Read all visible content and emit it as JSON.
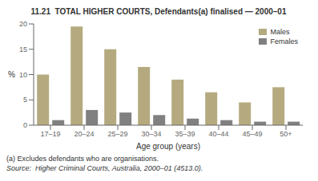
{
  "chart_data": {
    "type": "bar",
    "title": "11.21  TOTAL HIGHER COURTS, Defendants(a) finalised — 2000–01",
    "categories": [
      "17–19",
      "20–24",
      "25–29",
      "30–34",
      "35–39",
      "40–44",
      "45–49",
      "50+"
    ],
    "series": [
      {
        "name": "Males",
        "color": "#b5aa7f",
        "values": [
          10.0,
          19.5,
          15.0,
          11.5,
          9.0,
          6.5,
          4.5,
          7.5
        ]
      },
      {
        "name": "Females",
        "color": "#808080",
        "values": [
          1.0,
          3.0,
          2.5,
          2.0,
          1.3,
          1.0,
          0.7,
          0.7
        ]
      }
    ],
    "xlabel": "Age group (years)",
    "ylabel": "%",
    "ylim": [
      0,
      20
    ],
    "yticks": [
      0,
      5,
      10,
      15,
      20
    ],
    "grid": false,
    "legend": "upper right",
    "annotations": [
      "(a) Excludes defendants who are organisations.",
      "Source:  Higher Criminal Courts, Australia, 2000–01 (4513.0)."
    ]
  }
}
